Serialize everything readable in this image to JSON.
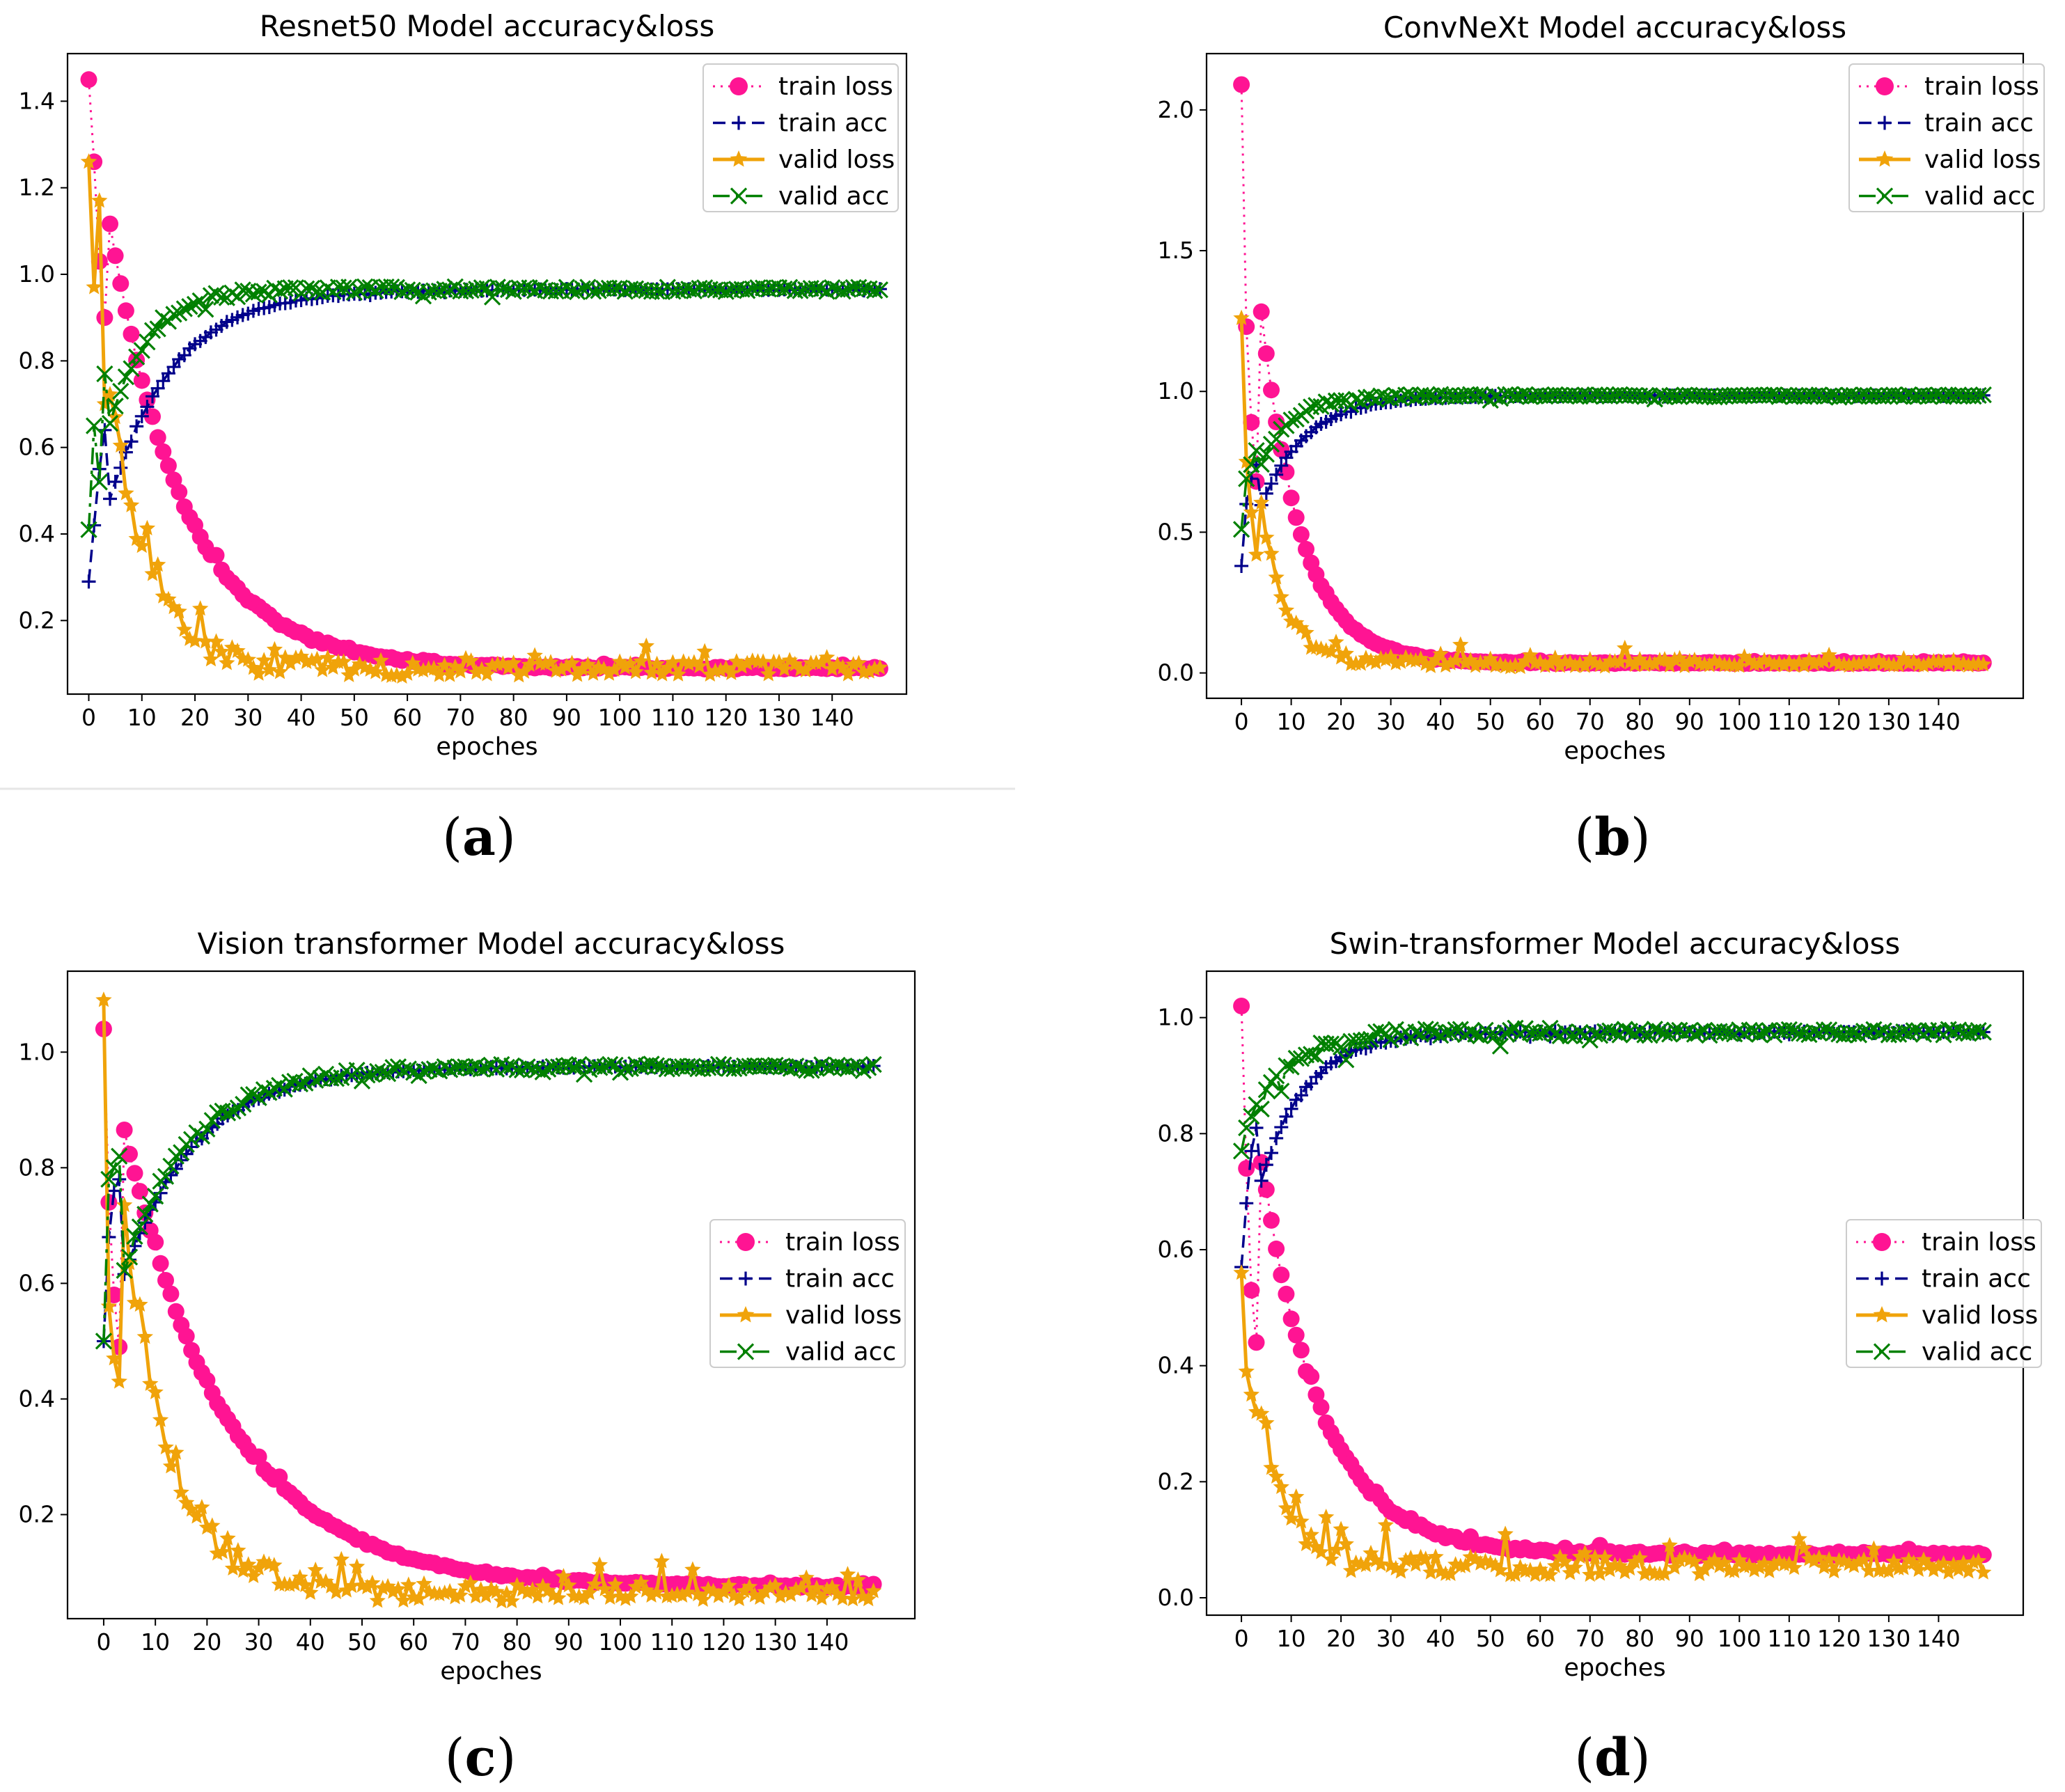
{
  "figure": {
    "panel_labels": [
      "a",
      "b",
      "c",
      "d"
    ]
  },
  "colors": {
    "train_loss": "#ff1493",
    "train_acc": "#00008b",
    "valid_loss": "#f0a30a",
    "valid_acc": "#008000"
  },
  "chart_data": [
    {
      "type": "line",
      "title": "Resnet50 Model accuracy&loss",
      "xlabel": "epoches",
      "ylabel": "",
      "xlim": [
        -4,
        154
      ],
      "ylim": [
        0.03,
        1.51
      ],
      "xticks": [
        0,
        10,
        20,
        30,
        40,
        50,
        60,
        70,
        80,
        90,
        100,
        110,
        120,
        130,
        140
      ],
      "yticks": [
        0.2,
        0.4,
        0.6,
        0.8,
        1.0,
        1.2,
        1.4
      ],
      "legend": "top-right",
      "series_params": {
        "train_loss": {
          "start": 1.45,
          "end": 0.09,
          "tau": 14,
          "noise": 0.006
        },
        "train_acc": {
          "start": 0.29,
          "end": 0.965,
          "tau": 12,
          "noise": 0.003
        },
        "valid_loss": {
          "start": 1.26,
          "end": 0.09,
          "tau": 7,
          "noise": 0.035
        },
        "valid_acc": {
          "start": 0.41,
          "end": 0.965,
          "tau": 7,
          "noise": 0.012
        }
      },
      "series_overrides": {
        "train_loss": [
          1.45,
          1.26,
          1.03,
          0.9
        ],
        "train_acc": [
          0.29,
          0.42,
          0.55,
          0.64
        ],
        "valid_loss": [
          1.26,
          0.97,
          1.17,
          0.7
        ],
        "valid_acc": [
          0.41,
          0.65,
          0.52,
          0.77
        ]
      },
      "series": [
        {
          "name": "train loss",
          "key": "train_loss"
        },
        {
          "name": "train acc",
          "key": "train_acc"
        },
        {
          "name": "valid loss",
          "key": "valid_loss"
        },
        {
          "name": "valid acc",
          "key": "valid_acc"
        }
      ]
    },
    {
      "type": "line",
      "title": "ConvNeXt Model accuracy&loss",
      "xlabel": "epoches",
      "ylabel": "",
      "xlim": [
        -7,
        157
      ],
      "ylim": [
        -0.09,
        2.2
      ],
      "xticks": [
        0,
        10,
        20,
        30,
        40,
        50,
        60,
        70,
        80,
        90,
        100,
        110,
        120,
        130,
        140
      ],
      "yticks": [
        0.0,
        0.5,
        1.0,
        1.5,
        2.0
      ],
      "legend": "top-right",
      "series_params": {
        "train_loss": {
          "start": 2.09,
          "end": 0.035,
          "tau": 8,
          "noise": 0.004
        },
        "train_acc": {
          "start": 0.38,
          "end": 0.985,
          "tau": 9,
          "noise": 0.003
        },
        "valid_loss": {
          "start": 1.26,
          "end": 0.035,
          "tau": 5,
          "noise": 0.025
        },
        "valid_acc": {
          "start": 0.51,
          "end": 0.985,
          "tau": 6,
          "noise": 0.008
        }
      },
      "series_overrides": {
        "train_loss": [
          2.09,
          1.23,
          0.89,
          0.68
        ],
        "train_acc": [
          0.38,
          0.6,
          0.69,
          0.74
        ],
        "valid_loss": [
          1.26,
          0.75,
          0.57,
          0.42
        ],
        "valid_acc": [
          0.51,
          0.69,
          0.74,
          0.79
        ]
      },
      "series": [
        {
          "name": "train loss",
          "key": "train_loss"
        },
        {
          "name": "train acc",
          "key": "train_acc"
        },
        {
          "name": "valid loss",
          "key": "valid_loss"
        },
        {
          "name": "valid acc",
          "key": "valid_acc"
        }
      ]
    },
    {
      "type": "line",
      "title": "Vision transformer Model accuracy&loss",
      "xlabel": "epoches",
      "ylabel": "",
      "xlim": [
        -7,
        157
      ],
      "ylim": [
        0.02,
        1.14
      ],
      "xticks": [
        0,
        10,
        20,
        30,
        40,
        50,
        60,
        70,
        80,
        90,
        100,
        110,
        120,
        130,
        140
      ],
      "yticks": [
        0.2,
        0.4,
        0.6,
        0.8,
        1.0
      ],
      "legend": "center-right",
      "series_params": {
        "train_loss": {
          "start": 1.04,
          "end": 0.075,
          "tau": 20,
          "noise": 0.005
        },
        "train_acc": {
          "start": 0.5,
          "end": 0.975,
          "tau": 14,
          "noise": 0.003
        },
        "valid_loss": {
          "start": 1.09,
          "end": 0.065,
          "tau": 9,
          "noise": 0.03
        },
        "valid_acc": {
          "start": 0.5,
          "end": 0.975,
          "tau": 13,
          "noise": 0.01
        }
      },
      "series_overrides": {
        "train_loss": [
          1.04,
          0.74,
          0.58,
          0.49
        ],
        "train_acc": [
          0.5,
          0.68,
          0.76,
          0.78
        ],
        "valid_loss": [
          1.09,
          0.56,
          0.47,
          0.43
        ],
        "valid_acc": [
          0.5,
          0.78,
          0.8,
          0.82
        ]
      },
      "series": [
        {
          "name": "train loss",
          "key": "train_loss"
        },
        {
          "name": "train acc",
          "key": "train_acc"
        },
        {
          "name": "valid loss",
          "key": "valid_loss"
        },
        {
          "name": "valid acc",
          "key": "valid_acc"
        }
      ]
    },
    {
      "type": "line",
      "title": "Swin-transformer  Model accuracy&loss",
      "xlabel": "epoches",
      "ylabel": "",
      "xlim": [
        -7,
        157
      ],
      "ylim": [
        -0.03,
        1.08
      ],
      "xticks": [
        0,
        10,
        20,
        30,
        40,
        50,
        60,
        70,
        80,
        90,
        100,
        110,
        120,
        130,
        140
      ],
      "yticks": [
        0.0,
        0.2,
        0.4,
        0.6,
        0.8,
        1.0
      ],
      "legend": "center-right",
      "series_params": {
        "train_loss": {
          "start": 1.02,
          "end": 0.075,
          "tau": 12,
          "noise": 0.006
        },
        "train_acc": {
          "start": 0.57,
          "end": 0.975,
          "tau": 9,
          "noise": 0.004
        },
        "valid_loss": {
          "start": 0.56,
          "end": 0.055,
          "tau": 6,
          "noise": 0.03
        },
        "valid_acc": {
          "start": 0.77,
          "end": 0.975,
          "tau": 8,
          "noise": 0.012
        }
      },
      "series_overrides": {
        "train_loss": [
          1.02,
          0.74,
          0.53,
          0.44
        ],
        "train_acc": [
          0.57,
          0.68,
          0.77,
          0.81
        ],
        "valid_loss": [
          0.56,
          0.39,
          0.35,
          0.32
        ],
        "valid_acc": [
          0.77,
          0.81,
          0.83,
          0.85
        ]
      },
      "series": [
        {
          "name": "train loss",
          "key": "train_loss"
        },
        {
          "name": "train acc",
          "key": "train_acc"
        },
        {
          "name": "valid loss",
          "key": "valid_loss"
        },
        {
          "name": "valid acc",
          "key": "valid_acc"
        }
      ]
    }
  ]
}
